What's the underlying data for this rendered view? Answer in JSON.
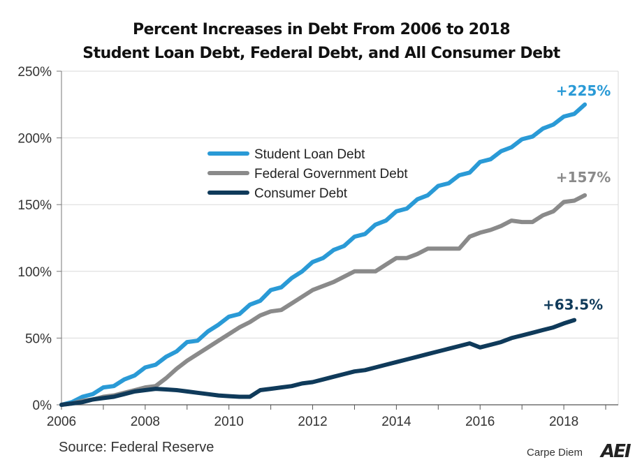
{
  "title": {
    "line1": "Percent Increases in Debt From 2006 to 2018",
    "line2": "Student Loan Debt, Federal Debt, and All Consumer Debt"
  },
  "source": "Source: Federal Reserve",
  "brand": {
    "name": "Carpe Diem",
    "logo": "AEI"
  },
  "chart_data": {
    "type": "line",
    "title": "Percent Increases in Debt From 2006 to 2018",
    "subtitle": "Student Loan Debt, Federal Debt, and All Consumer Debt",
    "xlabel": "",
    "ylabel": "",
    "xlim": [
      2006,
      2019.3
    ],
    "ylim": [
      0,
      250
    ],
    "x_ticks": [
      2006,
      2008,
      2010,
      2012,
      2014,
      2016,
      2018
    ],
    "x_tick_labels": [
      "2006",
      "2008",
      "2010",
      "2012",
      "2014",
      "2016",
      "2018"
    ],
    "y_ticks": [
      0,
      50,
      100,
      150,
      200,
      250
    ],
    "y_tick_labels": [
      "0%",
      "50%",
      "100%",
      "150%",
      "200%",
      "250%"
    ],
    "grid": "horizontal",
    "legend_position": "upper-left-center",
    "series": [
      {
        "name": "Student Loan Debt",
        "color": "#2a9ad6",
        "end_label": "+225%",
        "x": [
          2006.0,
          2006.25,
          2006.5,
          2006.75,
          2007.0,
          2007.25,
          2007.5,
          2007.75,
          2008.0,
          2008.25,
          2008.5,
          2008.75,
          2009.0,
          2009.25,
          2009.5,
          2009.75,
          2010.0,
          2010.25,
          2010.5,
          2010.75,
          2011.0,
          2011.25,
          2011.5,
          2011.75,
          2012.0,
          2012.25,
          2012.5,
          2012.75,
          2013.0,
          2013.25,
          2013.5,
          2013.75,
          2014.0,
          2014.25,
          2014.5,
          2014.75,
          2015.0,
          2015.25,
          2015.5,
          2015.75,
          2016.0,
          2016.25,
          2016.5,
          2016.75,
          2017.0,
          2017.25,
          2017.5,
          2017.75,
          2018.0,
          2018.25,
          2018.5
        ],
        "y": [
          0,
          2,
          6,
          8,
          13,
          14,
          19,
          22,
          28,
          30,
          36,
          40,
          47,
          48,
          55,
          60,
          66,
          68,
          75,
          78,
          86,
          88,
          95,
          100,
          107,
          110,
          116,
          119,
          126,
          128,
          135,
          138,
          145,
          147,
          154,
          157,
          164,
          166,
          172,
          174,
          182,
          184,
          190,
          193,
          199,
          201,
          207,
          210,
          216,
          218,
          225
        ]
      },
      {
        "name": "Federal Government Debt",
        "color": "#8a8a8a",
        "end_label": "+157%",
        "x": [
          2006.0,
          2006.25,
          2006.5,
          2006.75,
          2007.0,
          2007.25,
          2007.5,
          2007.75,
          2008.0,
          2008.25,
          2008.5,
          2008.75,
          2009.0,
          2009.25,
          2009.5,
          2009.75,
          2010.0,
          2010.25,
          2010.5,
          2010.75,
          2011.0,
          2011.25,
          2011.5,
          2011.75,
          2012.0,
          2012.25,
          2012.5,
          2012.75,
          2013.0,
          2013.25,
          2013.5,
          2013.75,
          2014.0,
          2014.25,
          2014.5,
          2014.75,
          2015.0,
          2015.25,
          2015.5,
          2015.75,
          2016.0,
          2016.25,
          2016.5,
          2016.75,
          2017.0,
          2017.25,
          2017.5,
          2017.75,
          2018.0,
          2018.25,
          2018.5
        ],
        "y": [
          0,
          1,
          3,
          4,
          6,
          7,
          9,
          11,
          13,
          14,
          20,
          27,
          33,
          38,
          43,
          48,
          53,
          58,
          62,
          67,
          70,
          71,
          76,
          81,
          86,
          89,
          92,
          96,
          100,
          100,
          100,
          105,
          110,
          110,
          113,
          117,
          117,
          117,
          117,
          126,
          129,
          131,
          134,
          138,
          137,
          137,
          142,
          145,
          152,
          153,
          157
        ]
      },
      {
        "name": "Consumer Debt",
        "color": "#0f3a5a",
        "end_label": "+63.5%",
        "x": [
          2006.0,
          2006.25,
          2006.5,
          2006.75,
          2007.0,
          2007.25,
          2007.5,
          2007.75,
          2008.0,
          2008.25,
          2008.5,
          2008.75,
          2009.0,
          2009.25,
          2009.5,
          2009.75,
          2010.0,
          2010.25,
          2010.5,
          2010.75,
          2011.0,
          2011.25,
          2011.5,
          2011.75,
          2012.0,
          2012.25,
          2012.5,
          2012.75,
          2013.0,
          2013.25,
          2013.5,
          2013.75,
          2014.0,
          2014.25,
          2014.5,
          2014.75,
          2015.0,
          2015.25,
          2015.5,
          2015.75,
          2016.0,
          2016.25,
          2016.5,
          2016.75,
          2017.0,
          2017.25,
          2017.5,
          2017.75,
          2018.0,
          2018.25
        ],
        "y": [
          0,
          1,
          2,
          4,
          5,
          6,
          8,
          10,
          11,
          12,
          11.5,
          11,
          10,
          9,
          8,
          7,
          6.5,
          6,
          6,
          11,
          12,
          13,
          14,
          16,
          17,
          19,
          21,
          23,
          25,
          26,
          28,
          30,
          32,
          34,
          36,
          38,
          40,
          42,
          44,
          46,
          43,
          45,
          47,
          50,
          52,
          54,
          56,
          58,
          61,
          63.5
        ]
      }
    ]
  }
}
